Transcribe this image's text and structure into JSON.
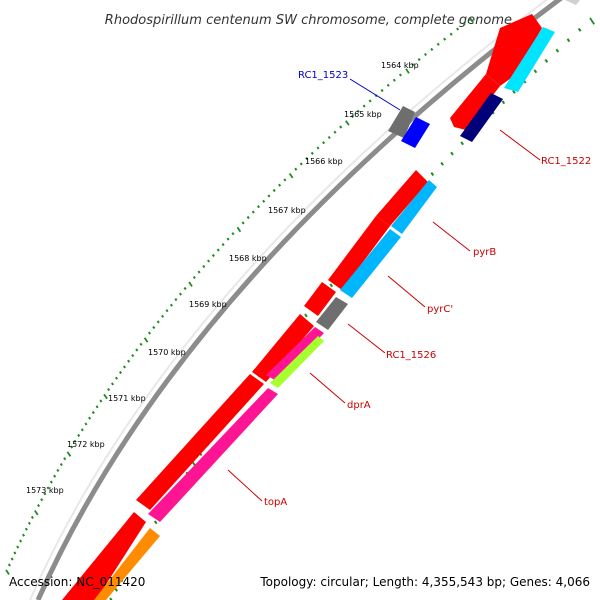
{
  "title": "Rhodospirillum centenum SW chromosome, complete genome",
  "footer": {
    "accession": "Accession: NC_011420",
    "topology": "Topology: circular; Length: 4,355,543 bp; Genes: 4,066"
  },
  "tick_labels": [
    "1564 kbp",
    "1565 kbp",
    "1566 kbp",
    "1567 kbp",
    "1568 kbp",
    "1569 kbp",
    "1570 kbp",
    "1571 kbp",
    "1572 kbp",
    "1573 kbp"
  ],
  "gene_labels": [
    {
      "text": "RC1_1523",
      "color": "#0000cc"
    },
    {
      "text": "RC1_1522",
      "color": "#cc0000"
    },
    {
      "text": "pyrB",
      "color": "#cc0000"
    },
    {
      "text": "pyrC'",
      "color": "#cc0000"
    },
    {
      "text": "RC1_1526",
      "color": "#cc0000"
    },
    {
      "text": "dprA",
      "color": "#cc0000"
    },
    {
      "text": "topA",
      "color": "#cc0000"
    }
  ],
  "colors": {
    "backbone": "#8c8c8c",
    "cds": "#ff0000",
    "cyan": "#00e5ff",
    "sky": "#00b7ff",
    "navy": "#00007a",
    "gray_gene": "#6e6e6e",
    "blue_gene": "#0000ff",
    "magenta": "#ff1493",
    "lime": "#a6ff2e",
    "orange": "#ff8c00",
    "tick": "#1e8c1e"
  }
}
